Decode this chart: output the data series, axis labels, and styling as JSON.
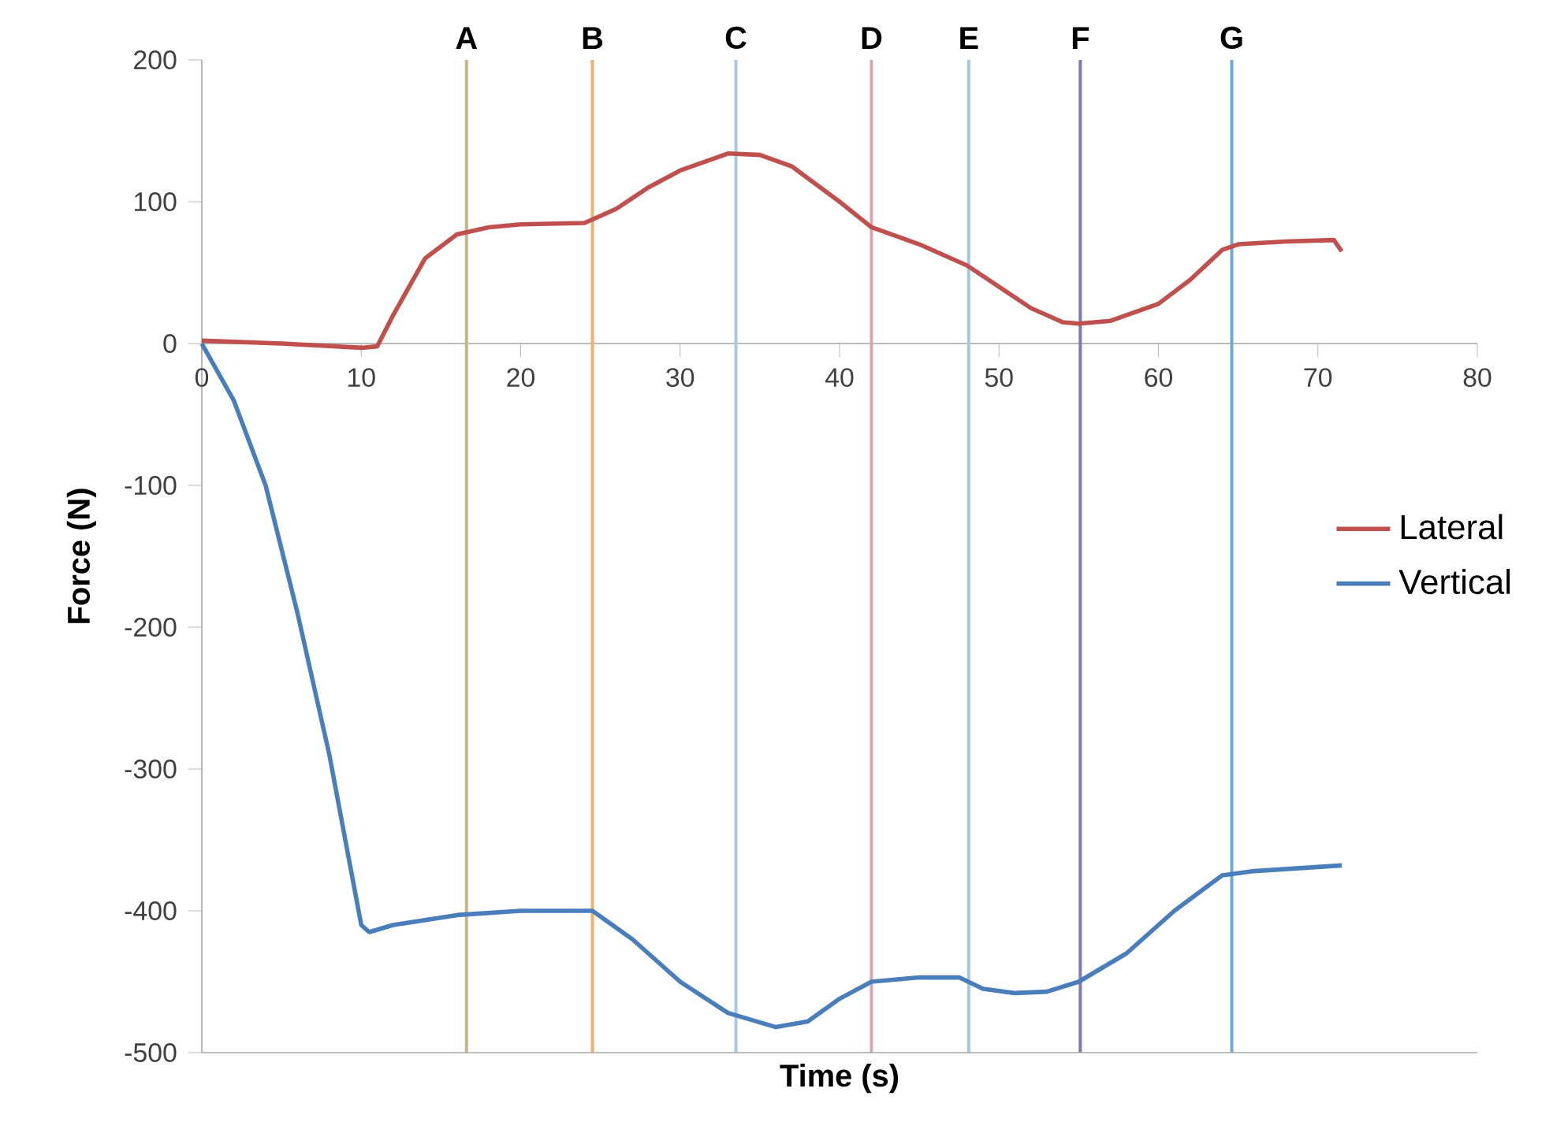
{
  "chart_data": {
    "type": "line",
    "xlabel": "Time (s)",
    "ylabel": "Force (N)",
    "xlim": [
      0,
      80
    ],
    "xticks": [
      0,
      10,
      20,
      30,
      40,
      50,
      60,
      70,
      80
    ],
    "ylim": [
      -500,
      200
    ],
    "yticks": [
      -500,
      -400,
      -300,
      -200,
      -100,
      0,
      100,
      200
    ],
    "legend": "right",
    "series": [
      {
        "name": "Lateral",
        "color": "#c0504d",
        "x": [
          0,
          5,
          10,
          11,
          12,
          14,
          16,
          18,
          20,
          24,
          26,
          28,
          30,
          33,
          35,
          37,
          40,
          42,
          45,
          48,
          50,
          52,
          54,
          55,
          57,
          60,
          62,
          64,
          65,
          68,
          71,
          71.5
        ],
        "values": [
          2,
          0,
          -3,
          -2,
          20,
          60,
          77,
          82,
          84,
          85,
          95,
          110,
          122,
          134,
          133,
          125,
          100,
          82,
          70,
          55,
          40,
          25,
          15,
          14,
          16,
          28,
          45,
          66,
          70,
          72,
          73,
          65
        ]
      },
      {
        "name": "Vertical",
        "color": "#4a7ebb",
        "x": [
          0,
          2,
          4,
          6,
          8,
          9,
          10,
          10.5,
          12,
          16,
          20,
          24.5,
          27,
          30,
          33,
          36,
          38,
          40,
          42,
          45,
          47.5,
          49,
          51,
          53,
          55,
          58,
          61,
          64,
          66,
          71.5
        ],
        "values": [
          0,
          -40,
          -100,
          -190,
          -290,
          -350,
          -410,
          -415,
          -410,
          -403,
          -400,
          -400,
          -420,
          -450,
          -472,
          -482,
          -478,
          -462,
          -450,
          -447,
          -447,
          -455,
          -458,
          -457,
          -450,
          -430,
          -400,
          -375,
          -372,
          -368
        ]
      }
    ],
    "ref_lines": [
      {
        "axis": "x",
        "value": 16.6,
        "label": "A",
        "color": "#c8b48c"
      },
      {
        "axis": "x",
        "value": 24.5,
        "label": "B",
        "color": "#f0b070"
      },
      {
        "axis": "x",
        "value": 33.5,
        "label": "C",
        "color": "#a8c8e8"
      },
      {
        "axis": "x",
        "value": 42.0,
        "label": "D",
        "color": "#d8a8b0"
      },
      {
        "axis": "x",
        "value": 48.1,
        "label": "E",
        "color": "#a0c8e8"
      },
      {
        "axis": "x",
        "value": 55.1,
        "label": "F",
        "color": "#8078b0"
      },
      {
        "axis": "x",
        "value": 64.6,
        "label": "G",
        "color": "#70a8d8"
      }
    ]
  }
}
